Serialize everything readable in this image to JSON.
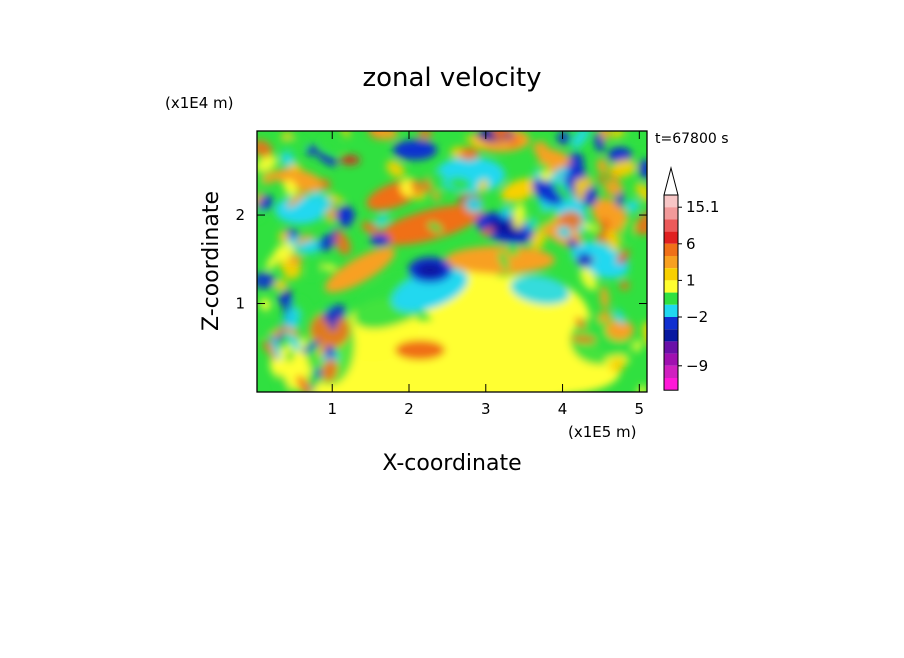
{
  "chart_data": {
    "type": "heatmap",
    "title": "zonal velocity",
    "xlabel": "X-coordinate",
    "ylabel": "Z-coordinate",
    "x_unit": "(x1E5 m)",
    "y_unit": "(x1E4 m)",
    "time_label": "t=67800 s",
    "xlim": [
      0.02,
      5.1
    ],
    "ylim": [
      0.0,
      2.95
    ],
    "xticks": [
      {
        "value": 1,
        "label": "1"
      },
      {
        "value": 2,
        "label": "2"
      },
      {
        "value": 3,
        "label": "3"
      },
      {
        "value": 4,
        "label": "4"
      },
      {
        "value": 5,
        "label": "5"
      }
    ],
    "yticks": [
      {
        "value": 1,
        "label": "1"
      },
      {
        "value": 2,
        "label": "2"
      }
    ],
    "colorbar": {
      "labels": [
        {
          "text": "15.1",
          "band": 1
        },
        {
          "text": "6",
          "band": 4
        },
        {
          "text": "1",
          "band": 7
        },
        {
          "text": "−2",
          "band": 10
        },
        {
          "text": "−9",
          "band": 14
        }
      ],
      "bands": [
        {
          "color": "#f7c6c6"
        },
        {
          "color": "#f29a9a"
        },
        {
          "color": "#ec5a5a"
        },
        {
          "color": "#e02020"
        },
        {
          "color": "#f07018"
        },
        {
          "color": "#f8a020"
        },
        {
          "color": "#f8d000"
        },
        {
          "color": "#ffff30"
        },
        {
          "color": "#30e040"
        },
        {
          "color": "#20d8f0"
        },
        {
          "color": "#1030d0"
        },
        {
          "color": "#0818a0"
        },
        {
          "color": "#6a10a8"
        },
        {
          "color": "#a010b0"
        },
        {
          "color": "#d020c0"
        },
        {
          "color": "#ff18d8"
        }
      ]
    },
    "dominant_regions": [
      {
        "region": "lower-center",
        "value_range": "0 to 2",
        "color": "#ffff30"
      },
      {
        "region": "center-right blob (x≈3.2, z≈2.0)",
        "value_range": "-6 to -2",
        "color": "#1030d0"
      },
      {
        "region": "left-center blob (x≈2.2, z≈1.4)",
        "value_range": "-6 to -2",
        "color": "#1030d0"
      },
      {
        "region": "upper band (x≈2.3, z≈2.1)",
        "value_range": "3 to 6",
        "color": "#f07018"
      }
    ]
  }
}
